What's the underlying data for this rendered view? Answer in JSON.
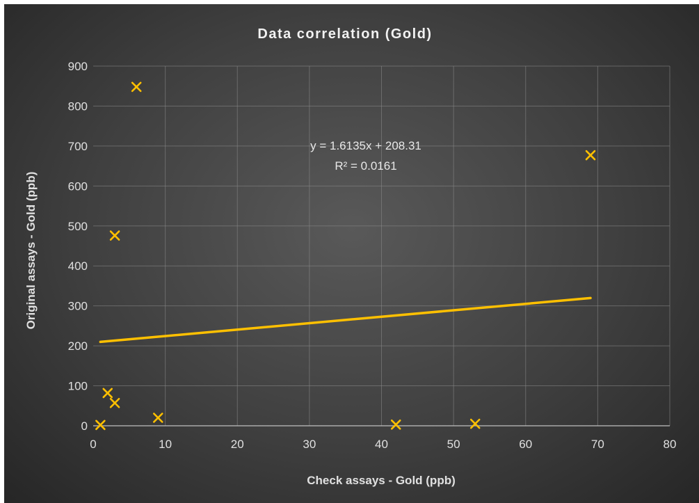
{
  "chart_data": {
    "type": "scatter",
    "title": "Data correlation (Gold)",
    "xlabel": "Check assays - Gold (ppb)",
    "ylabel": "Original assays - Gold (ppb)",
    "xlim": [
      0,
      80
    ],
    "ylim": [
      0,
      900
    ],
    "xticks": [
      0,
      10,
      20,
      30,
      40,
      50,
      60,
      70,
      80
    ],
    "yticks": [
      0,
      100,
      200,
      300,
      400,
      500,
      600,
      700,
      800,
      900
    ],
    "grid": true,
    "marker": "x",
    "marker_color": "#FFC000",
    "trendline_color": "#FFC000",
    "series": [
      {
        "points": [
          {
            "x": 1,
            "y": 2
          },
          {
            "x": 2,
            "y": 82
          },
          {
            "x": 3,
            "y": 57
          },
          {
            "x": 3,
            "y": 476
          },
          {
            "x": 6,
            "y": 848
          },
          {
            "x": 9,
            "y": 20
          },
          {
            "x": 42,
            "y": 3
          },
          {
            "x": 53,
            "y": 5
          },
          {
            "x": 69,
            "y": 677
          }
        ]
      }
    ],
    "trendline": {
      "slope": 1.6135,
      "intercept": 208.31,
      "x_range": [
        1,
        69
      ],
      "equation_label": "y = 1.6135x + 208.31",
      "r2_label": "R² = 0.0161"
    }
  }
}
